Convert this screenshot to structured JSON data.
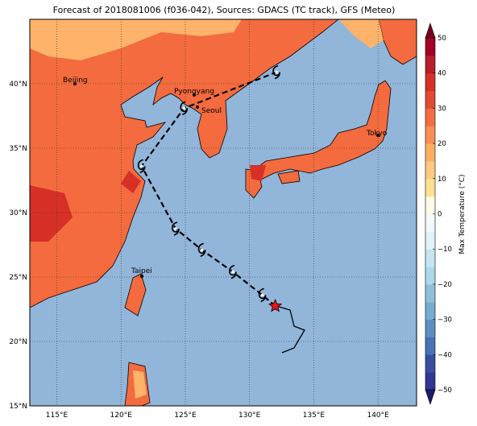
{
  "chart_data": {
    "type": "map",
    "title": "Forecast of 2018081006 (f036-042), Sources: GDACS (TC track), GFS (Meteo)",
    "xlim": [
      112.9,
      143
    ],
    "ylim": [
      15,
      45
    ],
    "xticks": [
      {
        "value": 115,
        "label": "115°E"
      },
      {
        "value": 120,
        "label": "120°E"
      },
      {
        "value": 125,
        "label": "125°E"
      },
      {
        "value": 130,
        "label": "130°E"
      },
      {
        "value": 135,
        "label": "135°E"
      },
      {
        "value": 140,
        "label": "140°E"
      }
    ],
    "yticks": [
      {
        "value": 15,
        "label": "15°N"
      },
      {
        "value": 20,
        "label": "20°N"
      },
      {
        "value": 25,
        "label": "25°N"
      },
      {
        "value": 30,
        "label": "30°N"
      },
      {
        "value": 35,
        "label": "35°N"
      },
      {
        "value": 40,
        "label": "40°N"
      }
    ],
    "grid": true,
    "cities": [
      "Beijing",
      "Pyongyang",
      "Seoul",
      "Tokyo",
      "Taipei"
    ],
    "forecast_track": {
      "color": "#000000",
      "x": [
        132.0,
        131.0,
        128.7,
        126.3,
        124.25,
        121.6,
        124.9,
        132.1
      ],
      "y": [
        22.75,
        23.6,
        25.4,
        27.1,
        28.75,
        33.6,
        38.1,
        40.9
      ]
    },
    "colorbar": {
      "label": "Max Temperature (°C)",
      "lim": [
        -50,
        50
      ],
      "ticks": [
        {
          "value": -50,
          "label": "−50"
        },
        {
          "value": -40,
          "label": "−40"
        },
        {
          "value": -30,
          "label": "−30"
        },
        {
          "value": -20,
          "label": "−20"
        },
        {
          "value": -10,
          "label": "−10"
        },
        0,
        10,
        20,
        30,
        40,
        50
      ],
      "colors": [
        "#313695",
        "#3a4ea0",
        "#4575b4",
        "#5b8fc3",
        "#74add1",
        "#91bfdb",
        "#abd9e9",
        "#c6e5f0",
        "#e0f3f8",
        "#f3fafc",
        "#fffbe6",
        "#fee090",
        "#fec980",
        "#fdae61",
        "#f98e52",
        "#f46d43",
        "#e34a33",
        "#d73027",
        "#b81f2b",
        "#a50026"
      ]
    }
  }
}
